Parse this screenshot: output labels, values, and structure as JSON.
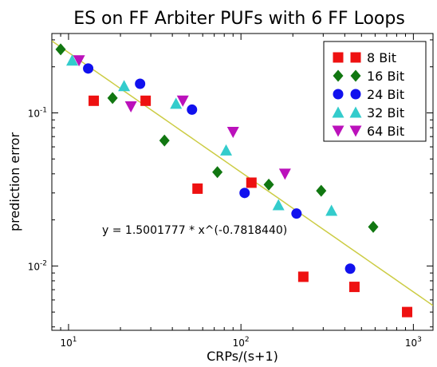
{
  "chart_data": {
    "type": "scatter",
    "title": "ES on FF Arbiter PUFs with 6 FF Loops",
    "xlabel": "CRPs/(s+1)",
    "ylabel": "prediction error",
    "xscale": "log",
    "yscale": "log",
    "xlim": [
      8,
      1300
    ],
    "ylim": [
      0.0038,
      0.33
    ],
    "x_ticks": [
      {
        "value": 10,
        "base": "10",
        "exp": "1"
      },
      {
        "value": 100,
        "base": "10",
        "exp": "2"
      },
      {
        "value": 1000,
        "base": "10",
        "exp": "3"
      }
    ],
    "y_ticks": [
      {
        "value": 0.01,
        "base": "10",
        "exp": "-2"
      },
      {
        "value": 0.1,
        "base": "10",
        "exp": "-1"
      }
    ],
    "grid": false,
    "legend_position": "top-right",
    "fit_line": {
      "label": "y = 1.5001777 * x^(-0.7818440)",
      "a": 1.5001777,
      "b": -0.781844,
      "color": "#cccc44"
    },
    "series": [
      {
        "name": "8 Bit",
        "marker": "square",
        "color": "#ee1111",
        "points": [
          [
            14,
            0.12
          ],
          [
            28,
            0.12
          ],
          [
            56,
            0.032
          ],
          [
            115,
            0.035
          ],
          [
            230,
            0.0085
          ],
          [
            455,
            0.0073
          ],
          [
            920,
            0.005
          ]
        ]
      },
      {
        "name": "16 Bit",
        "marker": "diamond",
        "color": "#117711",
        "points": [
          [
            9,
            0.26
          ],
          [
            18,
            0.125
          ],
          [
            36,
            0.066
          ],
          [
            73,
            0.041
          ],
          [
            145,
            0.034
          ],
          [
            292,
            0.031
          ],
          [
            585,
            0.018
          ]
        ]
      },
      {
        "name": "24 Bit",
        "marker": "circle",
        "color": "#1111ee",
        "points": [
          [
            13,
            0.195
          ],
          [
            26,
            0.155
          ],
          [
            52,
            0.105
          ],
          [
            105,
            0.03
          ],
          [
            210,
            0.022
          ],
          [
            430,
            0.0096
          ]
        ]
      },
      {
        "name": "32 Bit",
        "marker": "triangle-up",
        "color": "#33cccc",
        "points": [
          [
            10.5,
            0.22
          ],
          [
            21,
            0.15
          ],
          [
            42,
            0.115
          ],
          [
            82,
            0.057
          ],
          [
            165,
            0.025
          ],
          [
            335,
            0.023
          ]
        ]
      },
      {
        "name": "64 Bit",
        "marker": "triangle-down",
        "color": "#bb11bb",
        "points": [
          [
            11.5,
            0.22
          ],
          [
            23,
            0.11
          ],
          [
            46,
            0.12
          ],
          [
            90,
            0.075
          ],
          [
            180,
            0.04
          ]
        ]
      }
    ]
  }
}
